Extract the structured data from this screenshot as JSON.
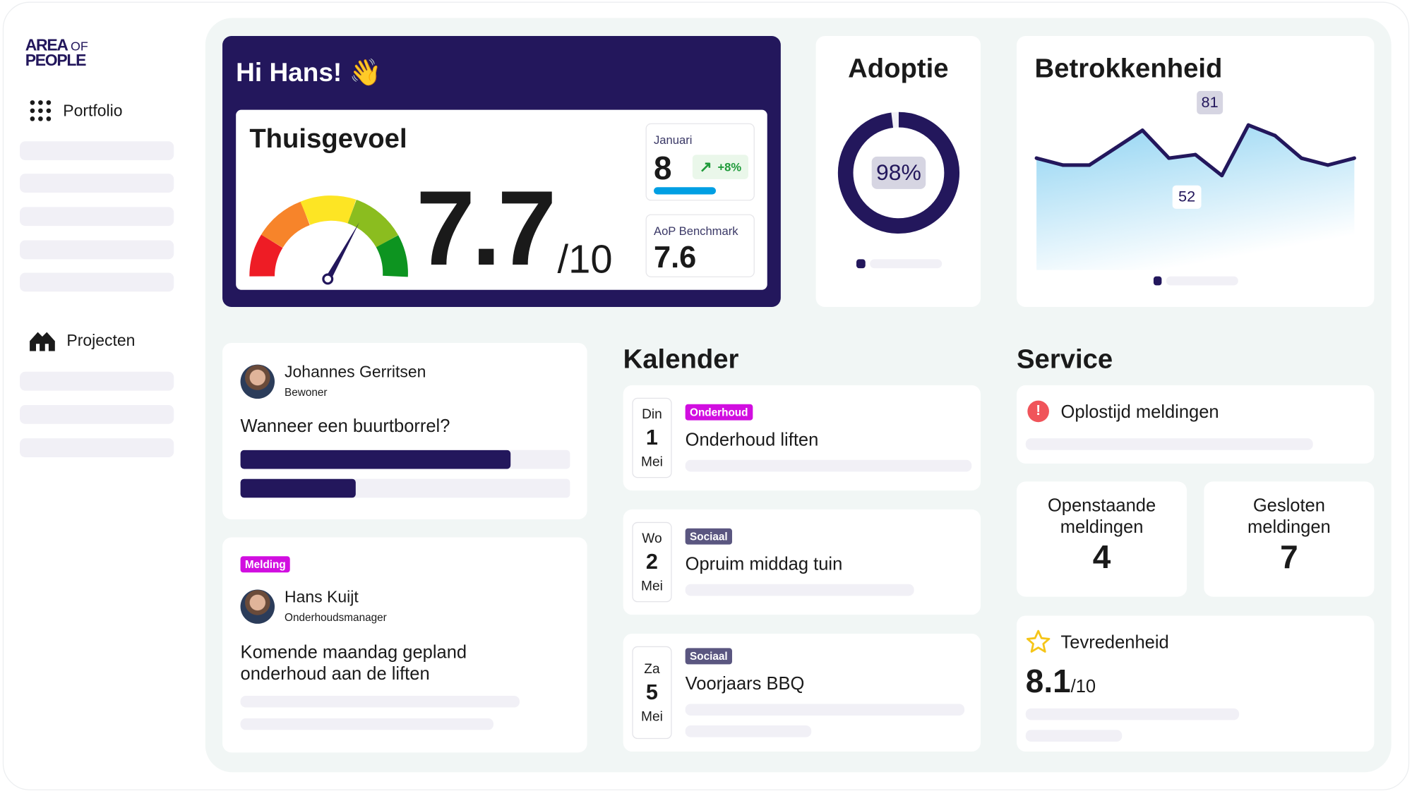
{
  "sidebar": {
    "logo_line1": "AREA",
    "logo_of": "OF",
    "logo_line2": "PEOPLE",
    "items": [
      {
        "label": "Portfolio",
        "icon": "grid-dots-icon"
      },
      {
        "label": "Projecten",
        "icon": "houses-icon"
      }
    ]
  },
  "hero": {
    "greeting": "Hi Hans!",
    "emoji": "👋",
    "title": "Thuisgevoel",
    "score": "7.7",
    "score_max": "/10",
    "score_value": 7.7,
    "month": {
      "label": "Januari",
      "value": "8",
      "change": "+8%",
      "bar_color": "#009fe3"
    },
    "benchmark": {
      "label": "AoP Benchmark",
      "value": "7.6"
    }
  },
  "adoptie": {
    "title": "Adoptie",
    "percent_label": "98%",
    "percent": 98
  },
  "betrokkenheid": {
    "title": "Betrokkenheid",
    "max_label": "81",
    "min_label": "52"
  },
  "chart_data": {
    "type": "area",
    "values": [
      62,
      58,
      58,
      68,
      78,
      62,
      64,
      52,
      81,
      75,
      62,
      58,
      62
    ],
    "annotations": [
      "81",
      "52"
    ],
    "line_color": "#23175c",
    "fill_color": "#8fd3f2"
  },
  "poll": {
    "name": "Johannes Gerritsen",
    "role": "Bewoner",
    "question": "Wanneer een buurtborrel?",
    "bars": [
      0.82,
      0.35
    ]
  },
  "melding": {
    "badge": "Melding",
    "name": "Hans Kuijt",
    "role": "Onderhoudsmanager",
    "text_line1": "Komende maandag gepland",
    "text_line2": "onderhoud aan de liften"
  },
  "kalender": {
    "title": "Kalender",
    "events": [
      {
        "day": "Din",
        "date": "1",
        "month": "Mei",
        "badge": "Onderhoud",
        "badge_color": "#d10ee0",
        "title": "Onderhoud liften"
      },
      {
        "day": "Wo",
        "date": "2",
        "month": "Mei",
        "badge": "Sociaal",
        "badge_color": "#5a5680",
        "title": "Opruim middag tuin"
      },
      {
        "day": "Za",
        "date": "5",
        "month": "Mei",
        "badge": "Sociaal",
        "badge_color": "#5a5680",
        "title": "Voorjaars BBQ"
      }
    ]
  },
  "service": {
    "title": "Service",
    "oplostijd": "Oplostijd meldingen",
    "open": {
      "line1": "Openstaande",
      "line2": "meldingen",
      "value": "4"
    },
    "closed": {
      "line1": "Gesloten",
      "line2": "meldingen",
      "value": "7"
    },
    "tevredenheid": {
      "label": "Tevredenheid",
      "value": "8.1",
      "max": "/10"
    }
  }
}
